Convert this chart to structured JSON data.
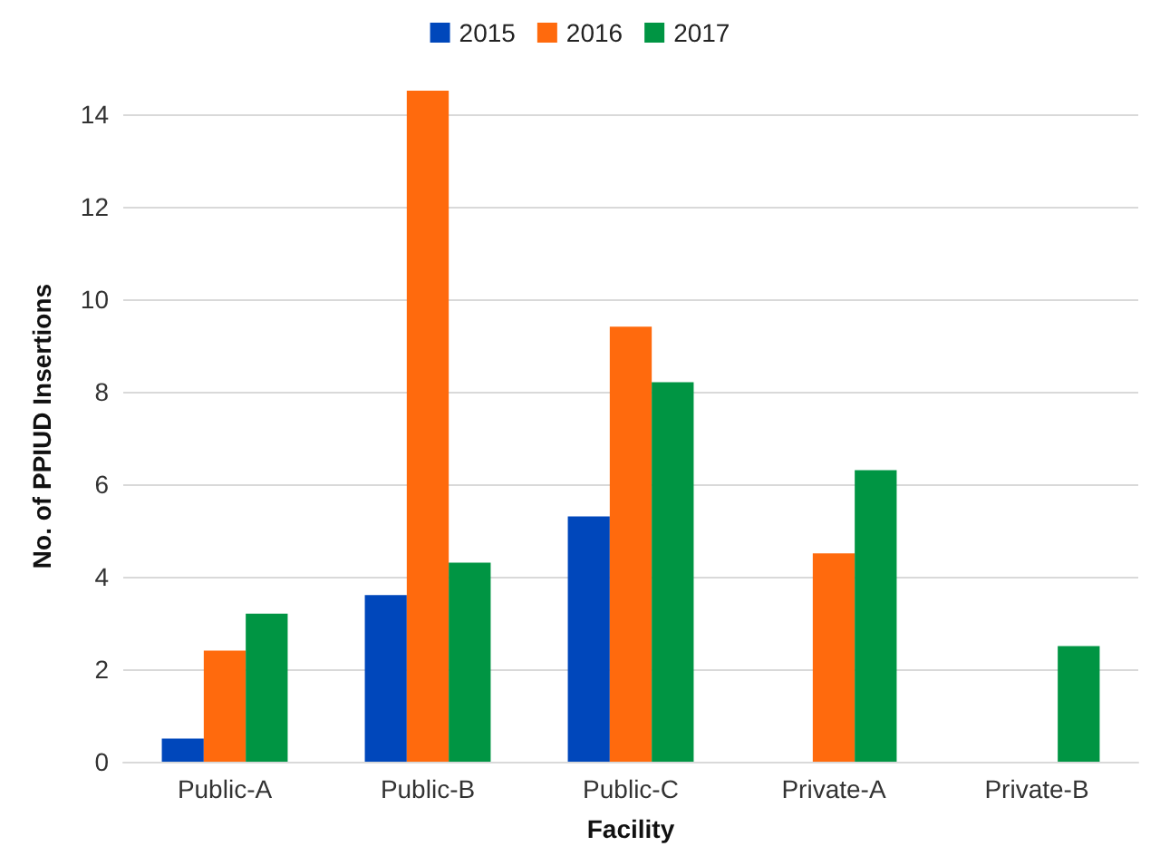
{
  "chart_data": {
    "type": "bar",
    "xlabel": "Facility",
    "ylabel": "No. of PPIUD Insertions",
    "categories": [
      "Public-A",
      "Public-B",
      "Public-C",
      "Private-A",
      "Private-B"
    ],
    "series": [
      {
        "name": "2015",
        "color": "#0047bb",
        "values": [
          0.5,
          3.6,
          5.3,
          0,
          0
        ]
      },
      {
        "name": "2016",
        "color": "#ff6a0d",
        "values": [
          2.4,
          14.5,
          9.4,
          4.5,
          0
        ]
      },
      {
        "name": "2017",
        "color": "#009543",
        "values": [
          3.2,
          4.3,
          8.2,
          6.3,
          2.5
        ]
      }
    ],
    "ylim": [
      0,
      14.5
    ],
    "yticks": [
      0,
      2,
      4,
      6,
      8,
      10,
      12,
      14
    ],
    "grid": "y",
    "legend": "top"
  }
}
